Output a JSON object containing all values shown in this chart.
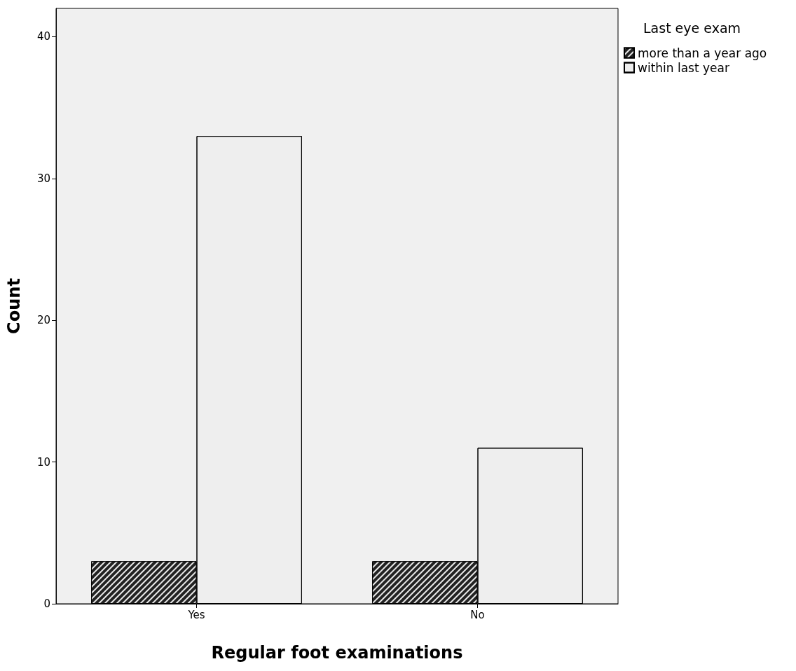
{
  "chart_data": {
    "type": "bar",
    "xlabel": "Regular foot examinations",
    "ylabel": "Count",
    "legend_title": "Last eye exam",
    "categories": [
      "Yes",
      "No"
    ],
    "series": [
      {
        "name": "more than a year ago",
        "color": "#222222",
        "values": [
          3,
          3
        ]
      },
      {
        "name": "within last year",
        "color": "#eeeeee",
        "values": [
          33,
          11
        ]
      }
    ],
    "ylim": [
      0,
      42
    ],
    "yticks": [
      0,
      10,
      20,
      30,
      40
    ],
    "grid": false,
    "legend": "top right"
  }
}
